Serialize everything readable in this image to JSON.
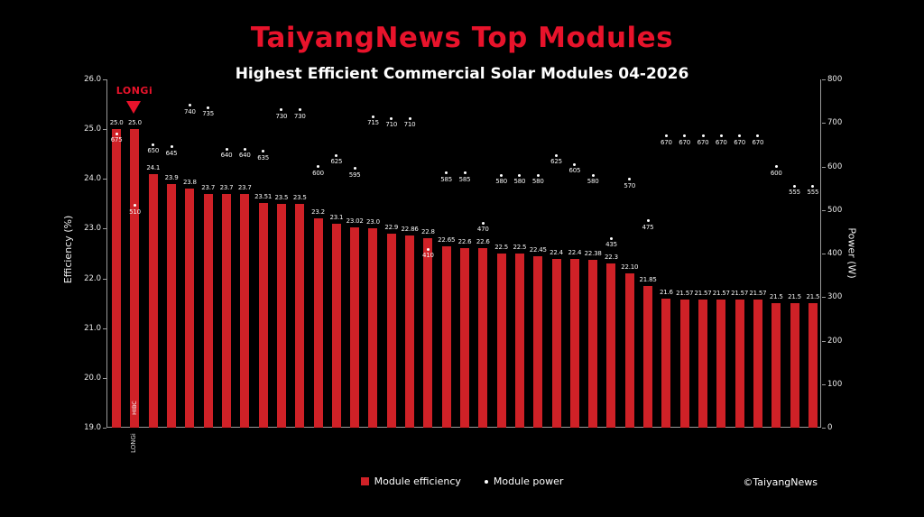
{
  "page": {
    "title": "TaiyangNews Top Modules",
    "subtitle": "Highest Efficient Commercial Solar Modules 04-2026",
    "copyright": "©TaiyangNews"
  },
  "legend": {
    "efficiency_label": "Module efficiency",
    "power_label": "Module power"
  },
  "annotation": {
    "brand": "LONGi",
    "bar_tag": "HIBC",
    "x_tick_label": "LONGi"
  },
  "colors": {
    "background": "#000000",
    "title_red": "#e8132b",
    "bar_red": "#cf2127",
    "dot_white": "#ffffff",
    "axis_gray": "#9a9a9a"
  },
  "chart_data": {
    "type": "bar",
    "title": "Highest Efficient Commercial Solar Modules 04-2026",
    "ylabel_left": "Efficiency (%)",
    "ylabel_right": "Power (W)",
    "ylim_left": [
      19.0,
      26.0
    ],
    "ylim_right": [
      0,
      800
    ],
    "yticks_left": [
      26.0,
      25.0,
      24.0,
      23.0,
      22.0,
      21.0,
      20.0,
      19.0
    ],
    "yticks_right": [
      800,
      700,
      600,
      500,
      400,
      300,
      200,
      100,
      0
    ],
    "grid": false,
    "legend_position": "bottom",
    "series": [
      {
        "name": "Module efficiency",
        "axis": "left",
        "style": "bar",
        "color": "#cf2127",
        "values": [
          25.0,
          25.0,
          24.1,
          23.9,
          23.8,
          23.7,
          23.7,
          23.7,
          23.51,
          23.5,
          23.5,
          23.2,
          23.1,
          23.02,
          23.0,
          22.9,
          22.86,
          22.8,
          22.65,
          22.6,
          22.6,
          22.5,
          22.5,
          22.45,
          22.4,
          22.4,
          22.38,
          22.3,
          22.1,
          21.85,
          21.6,
          21.57,
          21.57,
          21.57,
          21.57,
          21.57,
          21.5,
          21.5,
          21.5
        ],
        "labels": [
          "25.0",
          "25.0",
          "24.1",
          "23.9",
          "23.8",
          "23.7",
          "23.7",
          "23.7",
          "23.51",
          "23.5",
          "23.5",
          "23.2",
          "23.1",
          "23.02",
          "23.0",
          "22.9",
          "22.86",
          "22.8",
          "22.65",
          "22.6",
          "22.6",
          "22.5",
          "22.5",
          "22.45",
          "22.4",
          "22.4",
          "22.38",
          "22.3",
          "22.10",
          "21.85",
          "21.6",
          "21.57",
          "21.57",
          "21.57",
          "21.57",
          "21.57",
          "21.5",
          "21.5",
          "21.5"
        ]
      },
      {
        "name": "Module power",
        "axis": "right",
        "style": "scatter",
        "color": "#ffffff",
        "values": [
          675,
          510,
          650,
          645,
          740,
          735,
          640,
          640,
          635,
          730,
          730,
          600,
          625,
          595,
          715,
          710,
          710,
          410,
          585,
          585,
          470,
          580,
          580,
          580,
          625,
          605,
          580,
          435,
          570,
          475,
          670,
          670,
          670,
          670,
          670,
          670,
          600,
          555,
          555
        ]
      }
    ]
  }
}
